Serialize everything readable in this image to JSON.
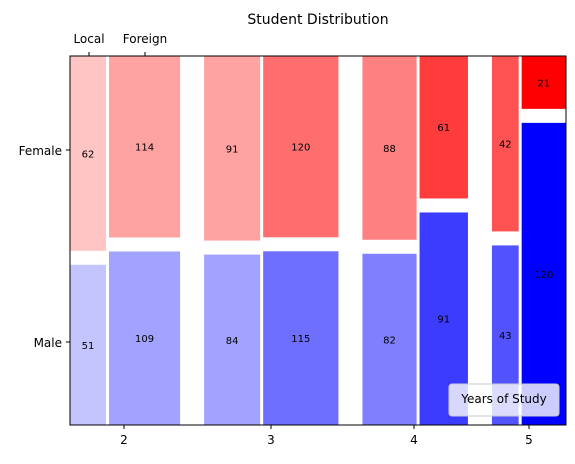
{
  "chart_data": {
    "type": "mosaic",
    "title": "Student Distribution",
    "top_tick_labels": [
      "Local",
      "Foreign"
    ],
    "x_tick_labels": [
      "2",
      "3",
      "4",
      "5"
    ],
    "y_tick_labels": [
      "Female",
      "Male"
    ],
    "legend_title": "Years of Study",
    "legend_location": "lower right",
    "grid": false,
    "years": [
      {
        "year": "2",
        "local": {
          "female": 62,
          "male": 51
        },
        "foreign": {
          "female": 114,
          "male": 109
        }
      },
      {
        "year": "3",
        "local": {
          "female": 91,
          "male": 84
        },
        "foreign": {
          "female": 120,
          "male": 115
        }
      },
      {
        "year": "4",
        "local": {
          "female": 88,
          "male": 82
        },
        "foreign": {
          "female": 61,
          "male": 91
        }
      },
      {
        "year": "5",
        "local": {
          "female": 42,
          "male": 43
        },
        "foreign": {
          "female": 21,
          "male": 120
        }
      }
    ],
    "colors": {
      "female": [
        "#ffc4c4",
        "#ffa2a2",
        "#ffa2a2",
        "#ff6e6e",
        "#ff8080",
        "#ff3c3c",
        "#ff5252",
        "#ff0000"
      ],
      "male": [
        "#c4c4ff",
        "#a2a2ff",
        "#a2a2ff",
        "#6e6eff",
        "#8080ff",
        "#3c3cff",
        "#5252ff",
        "#0000ff"
      ]
    }
  }
}
